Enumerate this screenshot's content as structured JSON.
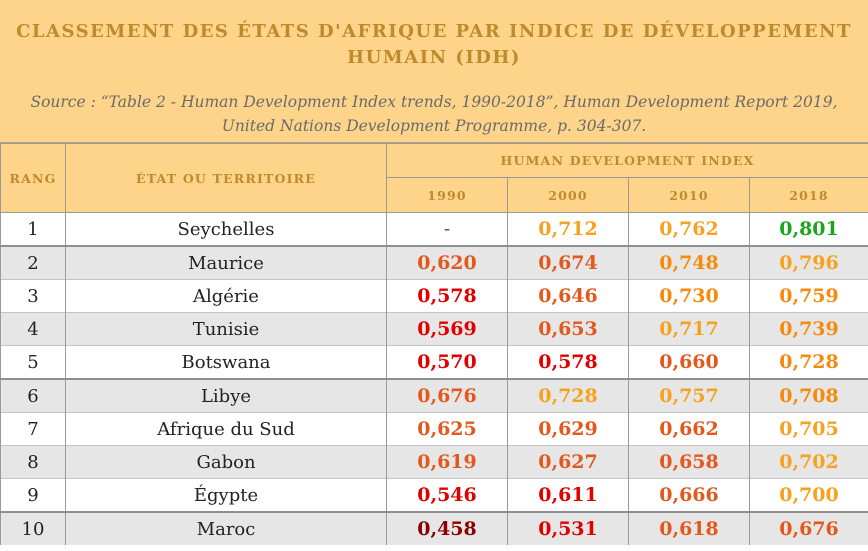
{
  "header": {
    "title_line1": "CLASSEMENT DES ÉTATS D'AFRIQUE PAR INDICE DE DÉVELOPPEMENT",
    "title_line2": "HUMAIN (IDH)",
    "source_line1": "Source : “Table 2 - Human Development Index trends, 1990-2018”, Human Development Report 2019,",
    "source_line2": "United Nations Development Programme, p. 304-307."
  },
  "table": {
    "col_rank": "RANG",
    "col_state": "ÉTAT OU TERRITOIRE",
    "col_hdi": "HUMAN DEVELOPMENT INDEX",
    "years": [
      "1990",
      "2000",
      "2010",
      "2018"
    ],
    "colors": {
      "v-vdark": "#8b0000",
      "v-red": "#e00000",
      "v-dorange": "#e3581d",
      "v-orange": "#f58a0c",
      "v-lorange": "#f6a21e",
      "v-green": "#1ca51c"
    },
    "rows": [
      {
        "rank": "1",
        "name": "Seychelles",
        "grey": false,
        "sep": false,
        "values": [
          "-",
          "0,712",
          "0,762",
          "0,801"
        ],
        "classes": [
          "v-dash",
          "v-lorange",
          "v-lorange",
          "v-green"
        ]
      },
      {
        "rank": "2",
        "name": "Maurice",
        "grey": true,
        "sep": true,
        "values": [
          "0,620",
          "0,674",
          "0,748",
          "0,796"
        ],
        "classes": [
          "v-dorange",
          "v-dorange",
          "v-orange",
          "v-lorange"
        ]
      },
      {
        "rank": "3",
        "name": "Algérie",
        "grey": false,
        "sep": false,
        "values": [
          "0,578",
          "0,646",
          "0,730",
          "0,759"
        ],
        "classes": [
          "v-red",
          "v-dorange",
          "v-orange",
          "v-orange"
        ]
      },
      {
        "rank": "4",
        "name": "Tunisie",
        "grey": true,
        "sep": false,
        "values": [
          "0,569",
          "0,653",
          "0,717",
          "0,739"
        ],
        "classes": [
          "v-red",
          "v-dorange",
          "v-lorange",
          "v-orange"
        ]
      },
      {
        "rank": "5",
        "name": "Botswana",
        "grey": false,
        "sep": false,
        "values": [
          "0,570",
          "0,578",
          "0,660",
          "0,728"
        ],
        "classes": [
          "v-red",
          "v-red",
          "v-dorange",
          "v-orange"
        ]
      },
      {
        "rank": "6",
        "name": "Libye",
        "grey": true,
        "sep": true,
        "values": [
          "0,676",
          "0,728",
          "0,757",
          "0,708"
        ],
        "classes": [
          "v-dorange",
          "v-lorange",
          "v-lorange",
          "v-orange"
        ]
      },
      {
        "rank": "7",
        "name": "Afrique du Sud",
        "grey": false,
        "sep": false,
        "values": [
          "0,625",
          "0,629",
          "0,662",
          "0,705"
        ],
        "classes": [
          "v-dorange",
          "v-dorange",
          "v-dorange",
          "v-lorange"
        ]
      },
      {
        "rank": "8",
        "name": "Gabon",
        "grey": true,
        "sep": false,
        "values": [
          "0,619",
          "0,627",
          "0,658",
          "0,702"
        ],
        "classes": [
          "v-dorange",
          "v-dorange",
          "v-dorange",
          "v-lorange"
        ]
      },
      {
        "rank": "9",
        "name": "Égypte",
        "grey": false,
        "sep": false,
        "values": [
          "0,546",
          "0,611",
          "0,666",
          "0,700"
        ],
        "classes": [
          "v-red",
          "v-red",
          "v-dorange",
          "v-lorange"
        ]
      },
      {
        "rank": "10",
        "name": "Maroc",
        "grey": true,
        "sep": true,
        "values": [
          "0,458",
          "0,531",
          "0,618",
          "0,676"
        ],
        "classes": [
          "v-vdark",
          "v-red",
          "v-dorange",
          "v-dorange"
        ]
      }
    ]
  }
}
